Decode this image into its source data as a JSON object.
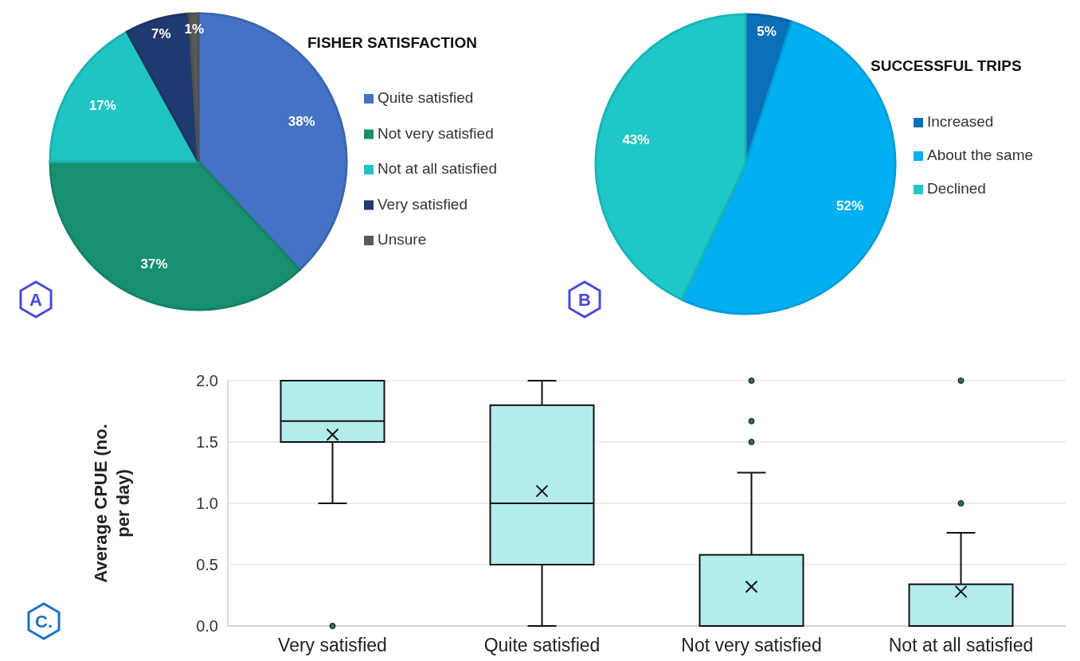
{
  "chart_data": [
    {
      "type": "pie",
      "title": "FISHER SATISFACTION",
      "categories": [
        "Quite satisfied",
        "Not very satisfied",
        "Not at all satisfied",
        "Very satisfied",
        "Unsure"
      ],
      "values": [
        38,
        37,
        17,
        7,
        1
      ],
      "colors": [
        "#4472c4",
        "#17906f",
        "#1fc5c3",
        "#1f3a6e",
        "#595959"
      ],
      "value_labels": [
        "38%",
        "37%",
        "17%",
        "7%",
        "1%"
      ],
      "legend": "right",
      "annotations": [
        "A"
      ]
    },
    {
      "type": "pie",
      "title": "SUCCESSFUL TRIPS",
      "categories": [
        "Increased",
        "About the same",
        "Declined"
      ],
      "values": [
        5,
        52,
        43
      ],
      "colors": [
        "#0b6fb8",
        "#00b0f0",
        "#1fc8c8"
      ],
      "value_labels": [
        "5%",
        "52%",
        "43%"
      ],
      "legend": "right",
      "annotations": [
        "B"
      ]
    },
    {
      "type": "box",
      "ylabel": "Average CPUE (no. per day)",
      "categories": [
        "Very satisfied",
        "Quite satisfied",
        "Not very satisfied",
        "Not at all satisfied"
      ],
      "color": "#b3ecec",
      "ylim": [
        0,
        2
      ],
      "yticks": [
        {
          "value": 0,
          "label": "0.0"
        },
        {
          "value": 0.5,
          "label": "0.5"
        },
        {
          "value": 1,
          "label": "1.0"
        },
        {
          "value": 1.5,
          "label": "1.5"
        },
        {
          "value": 2,
          "label": "2.0"
        }
      ],
      "grid": "y",
      "annotations": [
        "C."
      ],
      "boxes": [
        {
          "low": 1.0,
          "q1": 1.5,
          "median": 1.67,
          "q3": 2.0,
          "high": 2.0,
          "mean": 1.56,
          "outliers": [
            0
          ]
        },
        {
          "low": 0,
          "q1": 0.5,
          "median": 1.0,
          "q3": 1.8,
          "high": 2.0,
          "mean": 1.1
        },
        {
          "low": 0,
          "q1": 0,
          "median": 0,
          "q3": 0.58,
          "high": 1.25,
          "mean": 0.32,
          "outliers": [
            1.5,
            1.67,
            2.0
          ]
        },
        {
          "low": 0,
          "q1": 0,
          "median": 0,
          "q3": 0.34,
          "high": 0.76,
          "mean": 0.28,
          "outliers": [
            1.0,
            2.0
          ]
        }
      ]
    }
  ]
}
